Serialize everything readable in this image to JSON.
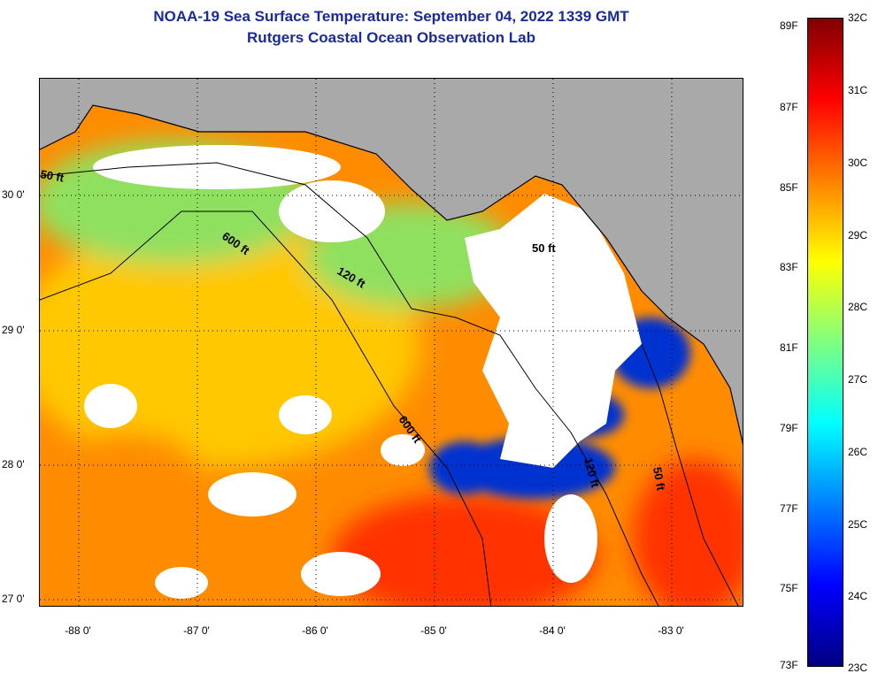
{
  "title": {
    "line1": "NOAA-19 Sea Surface Temperature:  September 04, 2022 1339 GMT",
    "line2": "Rutgers Coastal Ocean Observation Lab"
  },
  "axes": {
    "latitude_labels": [
      "30 0'",
      "29 0'",
      "28 0'",
      "27 0'"
    ],
    "longitude_labels": [
      "-88 0'",
      "-87 0'",
      "-86 0'",
      "-85 0'",
      "-84 0'",
      "-83 0'"
    ]
  },
  "colorbar": {
    "fahrenheit_labels": [
      "89F",
      "87F",
      "85F",
      "83F",
      "81F",
      "79F",
      "77F",
      "75F",
      "73F"
    ],
    "celsius_labels": [
      "32C",
      "31C",
      "30C",
      "29C",
      "28C",
      "27C",
      "26C",
      "25C",
      "24C",
      "23C"
    ],
    "gradient_colors": [
      "#800000",
      "#ff0000",
      "#ff8000",
      "#ffff00",
      "#80ff80",
      "#00ffff",
      "#0080ff",
      "#0000ff",
      "#000080"
    ]
  },
  "contours": {
    "labels": [
      "50 ft",
      "600 ft",
      "120 ft",
      "50 ft",
      "600 ft",
      "120 ft",
      "50 ft"
    ]
  },
  "map_colors": {
    "land": "#a9a9a9",
    "cloud": "#ffffff",
    "warm": "#ff8c00",
    "hot": "#ff3000",
    "mid": "#ffc800",
    "cool": "#90e060",
    "cold": "#0030d0"
  }
}
